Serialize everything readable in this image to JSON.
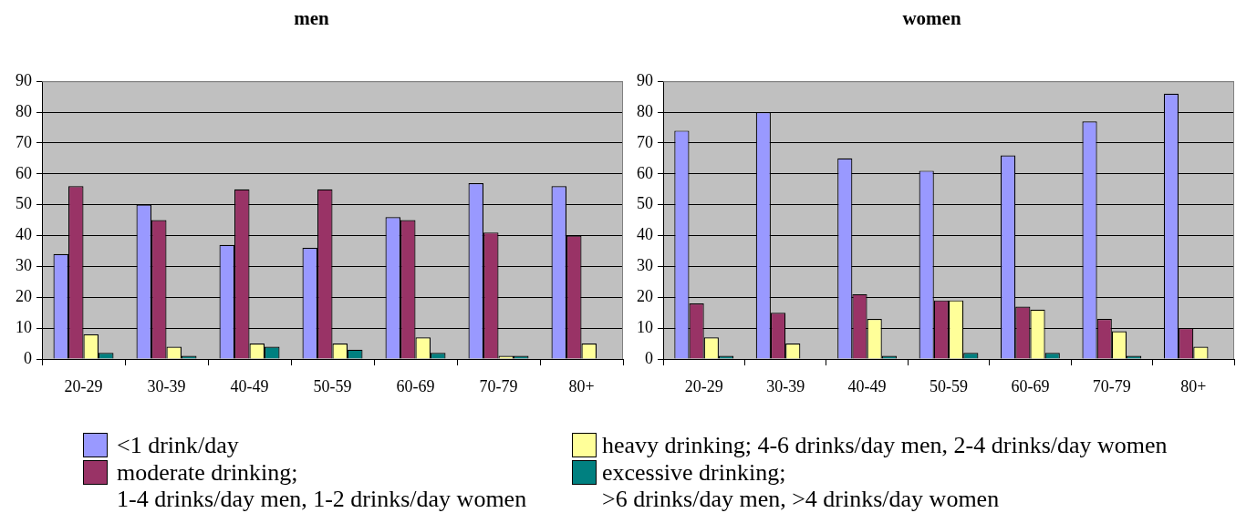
{
  "chart_data": [
    {
      "type": "bar",
      "title": "men",
      "categories": [
        "20-29",
        "30-39",
        "40-49",
        "50-59",
        "60-69",
        "70-79",
        "80+"
      ],
      "series": [
        {
          "name": "<1 drink/day",
          "color": "#9999ff",
          "values": [
            34,
            50,
            37,
            36,
            46,
            57,
            56
          ]
        },
        {
          "name": "moderate drinking;\n1-4 drinks/day men, 1-2 drinks/day women",
          "color": "#993366",
          "values": [
            56,
            45,
            55,
            55,
            45,
            41,
            40
          ]
        },
        {
          "name": "heavy drinking; 4-6 drinks/day men, 2-4 drinks/day women",
          "color": "#ffff99",
          "values": [
            8,
            4,
            5,
            5,
            7,
            1,
            5
          ]
        },
        {
          "name": "excessive drinking;\n>6 drinks/day men, >4 drinks/day women",
          "color": "#008080",
          "values": [
            2,
            1,
            4,
            3,
            2,
            1,
            0
          ]
        }
      ],
      "ylim": [
        0,
        90
      ],
      "yticks": [
        0,
        10,
        20,
        30,
        40,
        50,
        60,
        70,
        80,
        90
      ],
      "grid": "y",
      "legend": "bottom"
    },
    {
      "type": "bar",
      "title": "women",
      "categories": [
        "20-29",
        "30-39",
        "40-49",
        "50-59",
        "60-69",
        "70-79",
        "80+"
      ],
      "series": [
        {
          "color": "#9999ff",
          "values": [
            74,
            80,
            65,
            61,
            66,
            77,
            86
          ]
        },
        {
          "color": "#993366",
          "values": [
            18,
            15,
            21,
            19,
            17,
            13,
            10
          ]
        },
        {
          "color": "#ffff99",
          "values": [
            7,
            5,
            13,
            19,
            16,
            9,
            4
          ]
        },
        {
          "color": "#008080",
          "values": [
            1,
            0,
            1,
            2,
            2,
            1,
            0
          ]
        }
      ],
      "ylim": [
        0,
        90
      ],
      "yticks": [
        0,
        10,
        20,
        30,
        40,
        50,
        60,
        70,
        80,
        90
      ],
      "grid": "y"
    }
  ]
}
